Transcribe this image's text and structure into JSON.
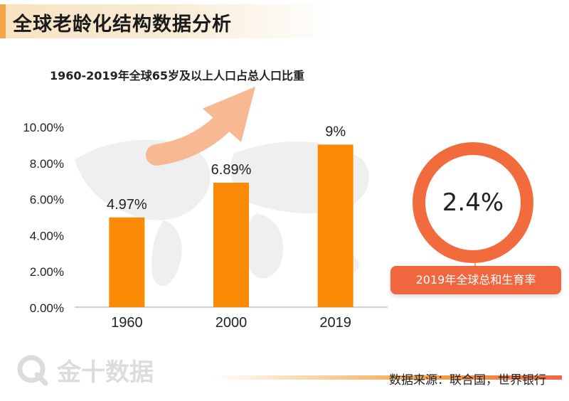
{
  "header": {
    "title": "全球老龄化结构数据分析"
  },
  "chart_data": {
    "type": "bar",
    "title": "1960-2019年全球65岁及以上人口占总人口比重",
    "categories": [
      "1960",
      "2000",
      "2019"
    ],
    "values": [
      4.97,
      6.89,
      9
    ],
    "data_labels": [
      "4.97%",
      "6.89%",
      "9%"
    ],
    "yticks": [
      "0.00%",
      "2.00%",
      "4.00%",
      "6.00%",
      "8.00%",
      "10.00%"
    ],
    "ylim": [
      0,
      10
    ],
    "grid": false,
    "bar_color": "#fb8a07",
    "arrow_color": "#f7b994"
  },
  "stat": {
    "value": "2.4%",
    "label": "2019年全球总和生育率",
    "color": "#f26b3d"
  },
  "footer": {
    "watermark": "金十数据",
    "source": "数据来源：联合国，世界银行"
  }
}
